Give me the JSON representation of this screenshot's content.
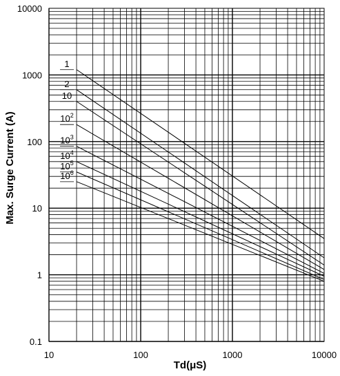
{
  "chart_data": {
    "type": "line",
    "title": "",
    "xlabel": "Td(μS)",
    "ylabel": "Max. Surge Current (A)",
    "x_scale": "log",
    "y_scale": "log",
    "xlim": [
      10,
      10000
    ],
    "ylim": [
      0.1,
      10000
    ],
    "grid": true,
    "x_tick_labels": [
      "10",
      "100",
      "1000",
      "10000"
    ],
    "y_tick_labels": [
      "0.1",
      "1",
      "10",
      "100",
      "1000",
      "10000"
    ],
    "series": [
      {
        "name": "1",
        "label_base": "1",
        "label_exp": "",
        "x": [
          20,
          10000
        ],
        "y": [
          1200,
          3.5
        ]
      },
      {
        "name": "2",
        "label_base": "2",
        "label_exp": "",
        "x": [
          20,
          10000
        ],
        "y": [
          600,
          1.8
        ]
      },
      {
        "name": "10",
        "label_base": "10",
        "label_exp": "",
        "x": [
          20,
          10000
        ],
        "y": [
          400,
          1.4
        ]
      },
      {
        "name": "10^2",
        "label_base": "10",
        "label_exp": "2",
        "x": [
          20,
          10000
        ],
        "y": [
          180,
          1.2
        ]
      },
      {
        "name": "10^3",
        "label_base": "10",
        "label_exp": "3",
        "x": [
          20,
          10000
        ],
        "y": [
          85,
          1.05
        ]
      },
      {
        "name": "10^4",
        "label_base": "10",
        "label_exp": "4",
        "x": [
          20,
          10000
        ],
        "y": [
          50,
          0.95
        ]
      },
      {
        "name": "10^5",
        "label_base": "10",
        "label_exp": "5",
        "x": [
          20,
          10000
        ],
        "y": [
          35,
          0.85
        ]
      },
      {
        "name": "10^6",
        "label_base": "10",
        "label_exp": "6",
        "x": [
          20,
          10000
        ],
        "y": [
          25,
          0.8
        ]
      }
    ]
  }
}
